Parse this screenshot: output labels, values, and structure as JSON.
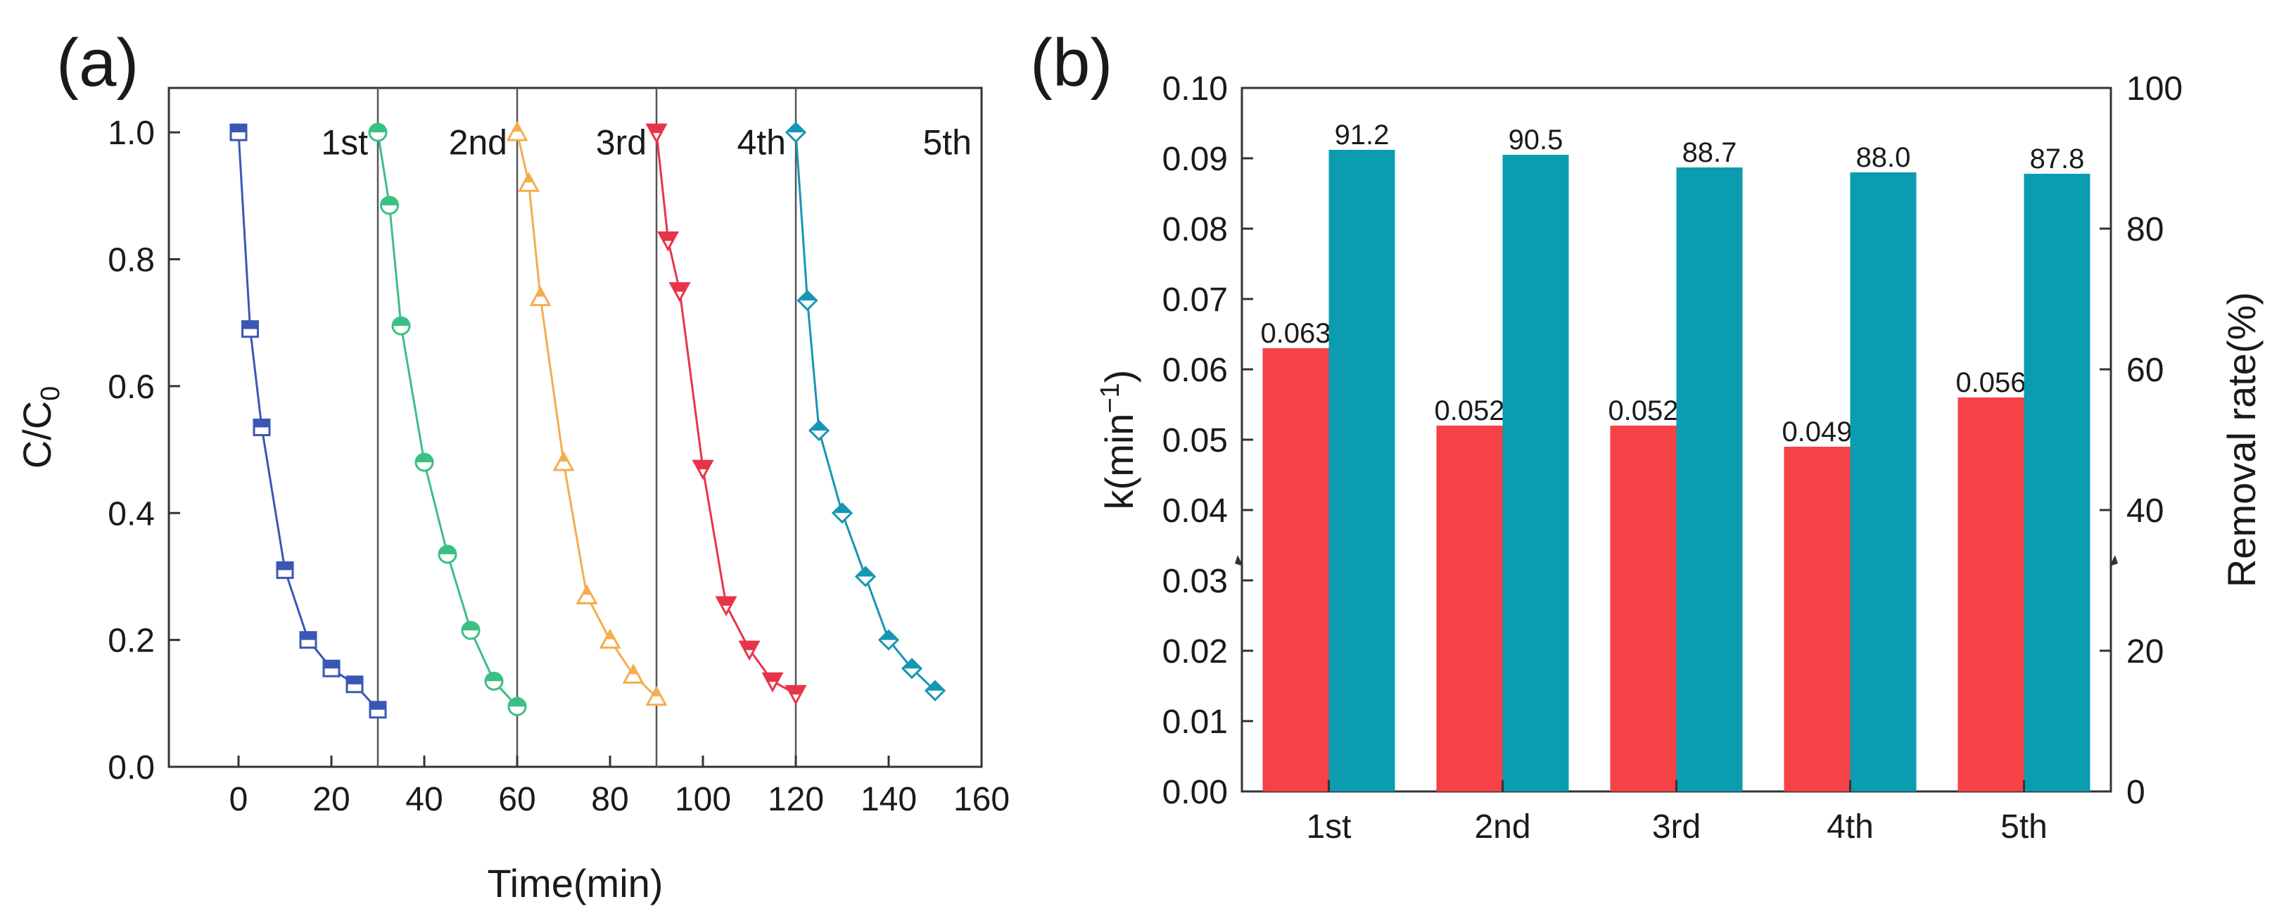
{
  "chart_data": [
    {
      "panel_label": "(a)",
      "type": "line",
      "xlabel": "Time(min)",
      "ylabel": "C/C",
      "ylabel_sub": "0",
      "xlim": [
        -15,
        160
      ],
      "ylim": [
        0,
        1.07
      ],
      "xticks": [
        0,
        20,
        40,
        60,
        80,
        100,
        120,
        140,
        160
      ],
      "yticks": [
        0.0,
        0.2,
        0.4,
        0.6,
        0.8,
        1.0
      ],
      "cycle_dividers": [
        30,
        60,
        90,
        120
      ],
      "grid": false,
      "series": [
        {
          "cycle": "1st",
          "color": "#3a57b5",
          "marker": "square",
          "x": [
            0,
            2.5,
            5,
            10,
            15,
            20,
            25,
            30
          ],
          "y": [
            1.0,
            0.69,
            0.535,
            0.31,
            0.2,
            0.155,
            0.13,
            0.09
          ]
        },
        {
          "cycle": "2nd",
          "color": "#3cbf84",
          "marker": "circle",
          "x": [
            30,
            32.5,
            35,
            40,
            45,
            50,
            55,
            60
          ],
          "y": [
            1.0,
            0.885,
            0.695,
            0.48,
            0.335,
            0.215,
            0.135,
            0.095
          ]
        },
        {
          "cycle": "3rd",
          "color": "#f3ad4f",
          "marker": "triangle-up",
          "x": [
            60,
            62.5,
            65,
            70,
            75,
            80,
            85,
            90
          ],
          "y": [
            1.0,
            0.92,
            0.74,
            0.48,
            0.27,
            0.2,
            0.145,
            0.11
          ]
        },
        {
          "cycle": "4th",
          "color": "#e8344a",
          "marker": "triangle-down",
          "x": [
            90,
            92.5,
            95,
            100,
            105,
            110,
            115,
            120
          ],
          "y": [
            1.0,
            0.83,
            0.75,
            0.47,
            0.255,
            0.185,
            0.135,
            0.115
          ]
        },
        {
          "cycle": "5th",
          "color": "#1795b5",
          "marker": "diamond",
          "x": [
            120,
            122.5,
            125,
            130,
            135,
            140,
            145,
            150
          ],
          "y": [
            1.0,
            0.735,
            0.53,
            0.4,
            0.3,
            0.2,
            0.155,
            0.12
          ]
        }
      ]
    },
    {
      "panel_label": "(b)",
      "type": "bar",
      "categories": [
        "1st",
        "2nd",
        "3rd",
        "4th",
        "5th"
      ],
      "ylabel_left": "k(min",
      "ylabel_left_sup": "−1",
      "ylabel_left_close": ")",
      "ylabel_right": "Removal rate(%)",
      "ylim_left": [
        0,
        0.1
      ],
      "ylim_right": [
        0,
        100
      ],
      "yticks_left": [
        "0.00",
        "0.01",
        "0.02",
        "0.03",
        "0.04",
        "0.05",
        "0.06",
        "0.07",
        "0.08",
        "0.09",
        "0.10"
      ],
      "yticks_right": [
        "0",
        "20",
        "40",
        "60",
        "80",
        "100"
      ],
      "grid": false,
      "series": [
        {
          "axis": "left",
          "color": "#f64147",
          "values": [
            0.063,
            0.052,
            0.052,
            0.049,
            0.056
          ],
          "labels": [
            "0.063",
            "0.052",
            "0.052",
            "0.049",
            "0.056"
          ]
        },
        {
          "axis": "right",
          "color": "#0b9cb0",
          "values": [
            91.2,
            90.5,
            88.7,
            88.0,
            87.8
          ],
          "labels": [
            "91.2",
            "90.5",
            "88.7",
            "88.0",
            "87.8"
          ]
        }
      ]
    }
  ]
}
